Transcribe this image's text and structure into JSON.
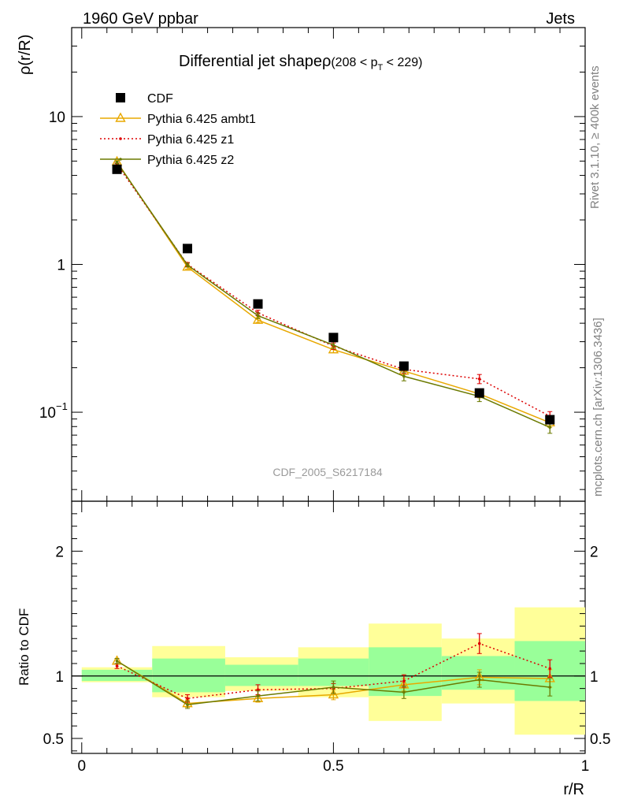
{
  "header": {
    "left": "1960 GeV ppbar",
    "right": "Jets"
  },
  "side_text": {
    "rivet": "Rivet 3.1.10, ≥ 400k events",
    "mcplots": "mcplots.cern.ch [arXiv:1306.3436]"
  },
  "chart_data": [
    {
      "type": "scatter",
      "title": "Differential jet shapeρ",
      "title_range": "(208 < p",
      "title_range_sub": "T",
      "title_range_end": " < 229)",
      "ylabel": "ρ(r/R)",
      "yscale": "log",
      "ylim": [
        0.025,
        40
      ],
      "xlim": [
        -0.02,
        1.0
      ],
      "y_ticklabels": [
        "10",
        "1",
        "10"
      ],
      "y_ticklabel_exp": "−1",
      "watermark": "CDF_2005_S6217184",
      "x": [
        0.07,
        0.21,
        0.35,
        0.5,
        0.64,
        0.79,
        0.93
      ],
      "series": [
        {
          "name": "CDF",
          "color": "#000000",
          "marker": "square",
          "values": [
            4.4,
            1.28,
            0.54,
            0.32,
            0.205,
            0.135,
            0.089
          ]
        },
        {
          "name": "Pythia 6.425 ambt1",
          "color": "#e8a800",
          "marker": "triangle",
          "line": "solid",
          "values": [
            4.95,
            0.96,
            0.42,
            0.265,
            0.19,
            0.133,
            0.085
          ],
          "errors": [
            0.1,
            0.03,
            0.015,
            0.012,
            0.01,
            0.008,
            0.006
          ]
        },
        {
          "name": "Pythia 6.425 z1",
          "color": "#dd0000",
          "marker": "dot",
          "line": "dotted",
          "values": [
            4.75,
            1.0,
            0.47,
            0.28,
            0.195,
            0.168,
            0.094
          ],
          "errors": [
            0.1,
            0.03,
            0.02,
            0.014,
            0.012,
            0.012,
            0.007
          ]
        },
        {
          "name": "Pythia 6.425 z2",
          "color": "#6b7a00",
          "marker": "dot",
          "line": "solid",
          "values": [
            4.9,
            0.99,
            0.45,
            0.285,
            0.175,
            0.128,
            0.079
          ],
          "errors": [
            0.1,
            0.03,
            0.02,
            0.015,
            0.012,
            0.01,
            0.007
          ]
        }
      ]
    },
    {
      "type": "scatter",
      "ylabel": "Ratio to CDF",
      "xlabel": "r/R",
      "ylim": [
        0.38,
        2.4
      ],
      "xlim": [
        -0.02,
        1.0
      ],
      "y_ticks": [
        0.5,
        1,
        2
      ],
      "y_ticklabels": [
        "0.5",
        "1",
        "2"
      ],
      "x_ticks": [
        0,
        0.5,
        1
      ],
      "x_ticklabels": [
        "0",
        "0.5",
        "1"
      ],
      "x": [
        0.07,
        0.21,
        0.35,
        0.5,
        0.64,
        0.79,
        0.93
      ],
      "bins": [
        [
          0,
          0.14
        ],
        [
          0.14,
          0.285
        ],
        [
          0.285,
          0.43
        ],
        [
          0.43,
          0.57
        ],
        [
          0.57,
          0.715
        ],
        [
          0.715,
          0.86
        ],
        [
          0.86,
          1.0
        ]
      ],
      "band_yellow": [
        [
          0.95,
          1.07
        ],
        [
          0.83,
          1.24
        ],
        [
          0.88,
          1.15
        ],
        [
          0.83,
          1.23
        ],
        [
          0.64,
          1.42
        ],
        [
          0.78,
          1.3
        ],
        [
          0.53,
          1.55
        ]
      ],
      "band_green": [
        [
          0.96,
          1.05
        ],
        [
          0.87,
          1.14
        ],
        [
          0.92,
          1.09
        ],
        [
          0.92,
          1.14
        ],
        [
          0.84,
          1.23
        ],
        [
          0.89,
          1.16
        ],
        [
          0.8,
          1.28
        ]
      ],
      "series": [
        {
          "name": "Pythia 6.425 ambt1",
          "color": "#e8a800",
          "marker": "triangle",
          "line": "solid",
          "values": [
            1.12,
            0.78,
            0.82,
            0.85,
            0.93,
            0.99,
            0.98
          ],
          "errors": [
            0.02,
            0.03,
            0.03,
            0.04,
            0.05,
            0.06,
            0.07
          ]
        },
        {
          "name": "Pythia 6.425 z1",
          "color": "#dd0000",
          "marker": "dot",
          "line": "dotted",
          "values": [
            1.08,
            0.82,
            0.89,
            0.9,
            0.96,
            1.26,
            1.06
          ],
          "errors": [
            0.02,
            0.03,
            0.04,
            0.04,
            0.05,
            0.08,
            0.07
          ]
        },
        {
          "name": "Pythia 6.425 z2",
          "color": "#6b7a00",
          "marker": "dot",
          "line": "solid",
          "values": [
            1.12,
            0.77,
            0.84,
            0.91,
            0.87,
            0.97,
            0.91
          ],
          "errors": [
            0.02,
            0.03,
            0.04,
            0.05,
            0.05,
            0.06,
            0.07
          ]
        }
      ]
    }
  ]
}
